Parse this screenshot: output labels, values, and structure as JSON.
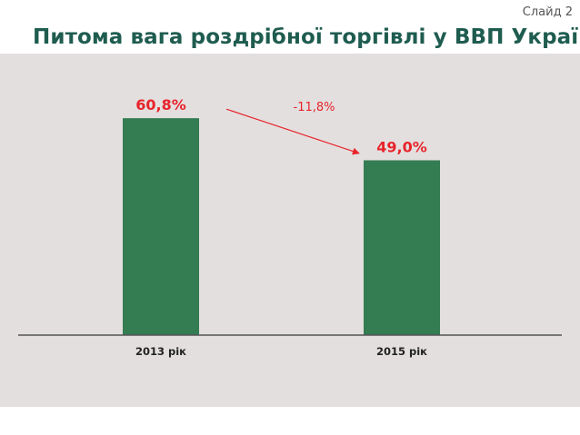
{
  "slide": {
    "label": "Слайд 2"
  },
  "chart_data": {
    "type": "bar",
    "title": "Питома вага роздрібної торгівлі у ВВП України",
    "categories": [
      "2013 рік",
      "2015 рік"
    ],
    "values": [
      60.8,
      49.0
    ],
    "data_labels": [
      "60,8%",
      "49,0%"
    ],
    "annotation": {
      "text": "-11,8%",
      "from": "2013 рік",
      "to": "2015 рік",
      "type": "arrow"
    },
    "ylim": [
      0,
      70
    ],
    "grid": false,
    "legend": "none",
    "colors": {
      "bar": "#347c52",
      "label": "#e8242a",
      "axis": "#555555",
      "title": "#1f5c50"
    }
  }
}
